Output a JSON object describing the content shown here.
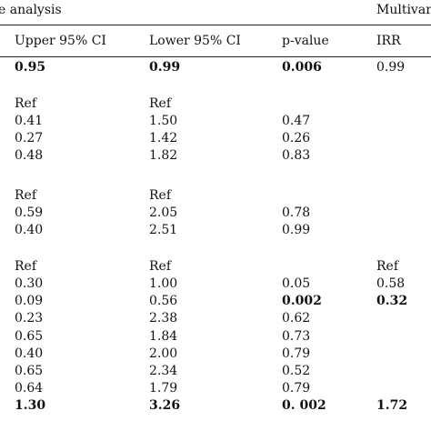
{
  "header": {
    "group_left": "e analysis",
    "group_right": "Multivari",
    "columns": [
      "Upper 95% CI",
      "Lower 95% CI",
      "p-value",
      "IRR"
    ]
  },
  "rows": [
    {
      "cells": [
        "0.95",
        "0.99",
        "0.006",
        "0.99"
      ],
      "bold": [
        true,
        true,
        true,
        false
      ]
    },
    {
      "cells": [
        "",
        "",
        "",
        ""
      ],
      "bold": [
        false,
        false,
        false,
        false
      ]
    },
    {
      "cells": [
        "Ref",
        "Ref",
        "",
        ""
      ],
      "bold": [
        false,
        false,
        false,
        false
      ]
    },
    {
      "cells": [
        "0.41",
        "1.50",
        "0.47",
        ""
      ],
      "bold": [
        false,
        false,
        false,
        false
      ]
    },
    {
      "cells": [
        "0.27",
        "1.42",
        "0.26",
        ""
      ],
      "bold": [
        false,
        false,
        false,
        false
      ]
    },
    {
      "cells": [
        "0.48",
        "1.82",
        "0.83",
        ""
      ],
      "bold": [
        false,
        false,
        false,
        false
      ]
    },
    {
      "cells": [
        "",
        "",
        "",
        ""
      ],
      "bold": [
        false,
        false,
        false,
        false
      ]
    },
    {
      "cells": [
        "Ref",
        "Ref",
        "",
        ""
      ],
      "bold": [
        false,
        false,
        false,
        false
      ]
    },
    {
      "cells": [
        "0.59",
        "2.05",
        "0.78",
        ""
      ],
      "bold": [
        false,
        false,
        false,
        false
      ]
    },
    {
      "cells": [
        "0.40",
        "2.51",
        "0.99",
        ""
      ],
      "bold": [
        false,
        false,
        false,
        false
      ]
    },
    {
      "cells": [
        "",
        "",
        "",
        ""
      ],
      "bold": [
        false,
        false,
        false,
        false
      ]
    },
    {
      "cells": [
        "Ref",
        "Ref",
        "",
        "Ref"
      ],
      "bold": [
        false,
        false,
        false,
        false
      ]
    },
    {
      "cells": [
        "0.30",
        "1.00",
        "0.05",
        "0.58"
      ],
      "bold": [
        false,
        false,
        false,
        false
      ]
    },
    {
      "cells": [
        "0.09",
        "0.56",
        "0.002",
        "0.32"
      ],
      "bold": [
        false,
        false,
        true,
        true
      ]
    },
    {
      "cells": [
        "0.23",
        "2.38",
        "0.62",
        ""
      ],
      "bold": [
        false,
        false,
        false,
        false
      ]
    },
    {
      "cells": [
        "0.65",
        "1.84",
        "0.73",
        ""
      ],
      "bold": [
        false,
        false,
        false,
        false
      ]
    },
    {
      "cells": [
        "0.40",
        "2.00",
        "0.79",
        ""
      ],
      "bold": [
        false,
        false,
        false,
        false
      ]
    },
    {
      "cells": [
        "0.65",
        "2.34",
        "0.52",
        ""
      ],
      "bold": [
        false,
        false,
        false,
        false
      ]
    },
    {
      "cells": [
        "0.64",
        "1.79",
        "0.79",
        ""
      ],
      "bold": [
        false,
        false,
        false,
        false
      ]
    },
    {
      "cells": [
        "1.30",
        "3.26",
        "0. 002",
        "1.72"
      ],
      "bold": [
        true,
        true,
        true,
        true
      ]
    }
  ]
}
